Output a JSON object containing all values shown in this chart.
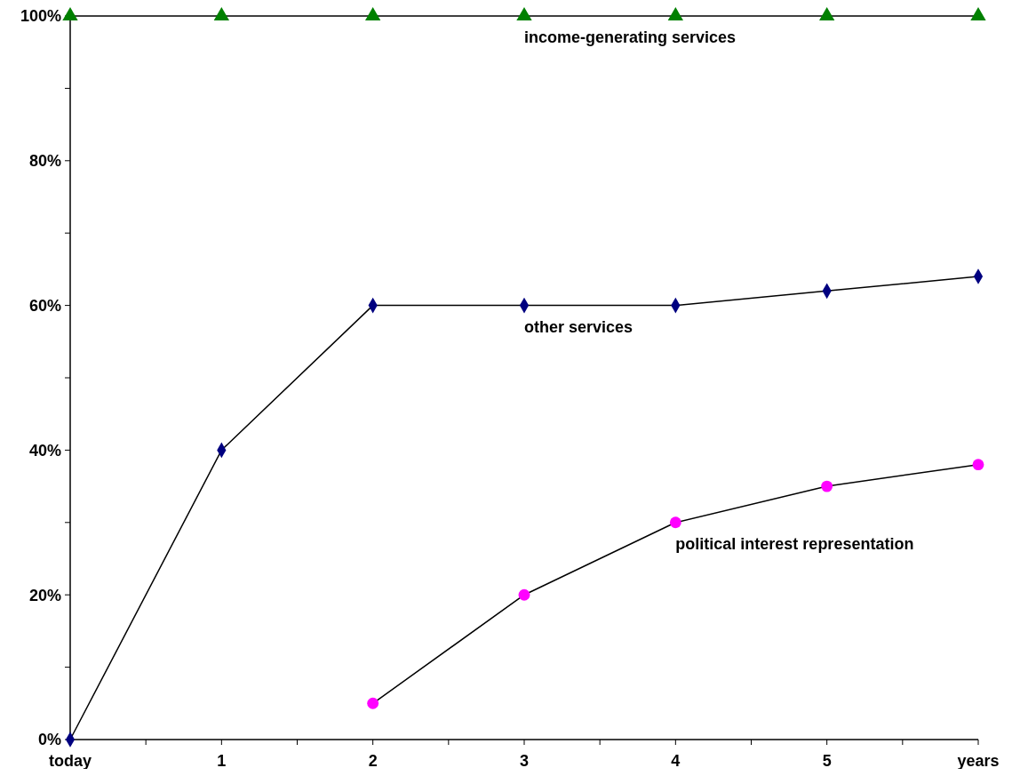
{
  "chart_data": {
    "type": "line",
    "categories": [
      "today",
      "1",
      "2",
      "3",
      "4",
      "5",
      "years"
    ],
    "series": [
      {
        "name": "income-generating services",
        "color": "#008000",
        "marker": "triangle",
        "values": [
          100,
          100,
          100,
          100,
          100,
          100,
          100
        ]
      },
      {
        "name": "other services",
        "color": "#000080",
        "marker": "diamond",
        "values": [
          0,
          40,
          60,
          60,
          60,
          62,
          64
        ]
      },
      {
        "name": "political interest representation",
        "color": "#ff00ff",
        "marker": "circle",
        "values": [
          null,
          null,
          5,
          20,
          30,
          35,
          38
        ]
      }
    ],
    "ylim": [
      0,
      100
    ],
    "yticks": [
      {
        "value": 0,
        "label": "0%"
      },
      {
        "value": 10,
        "label": null
      },
      {
        "value": 20,
        "label": "20%"
      },
      {
        "value": 30,
        "label": null
      },
      {
        "value": 40,
        "label": "40%"
      },
      {
        "value": 50,
        "label": null
      },
      {
        "value": 60,
        "label": "60%"
      },
      {
        "value": 70,
        "label": null
      },
      {
        "value": 80,
        "label": "80%"
      },
      {
        "value": 90,
        "label": null
      },
      {
        "value": 100,
        "label": "100%"
      }
    ],
    "grid": false,
    "line_style": "solid"
  }
}
